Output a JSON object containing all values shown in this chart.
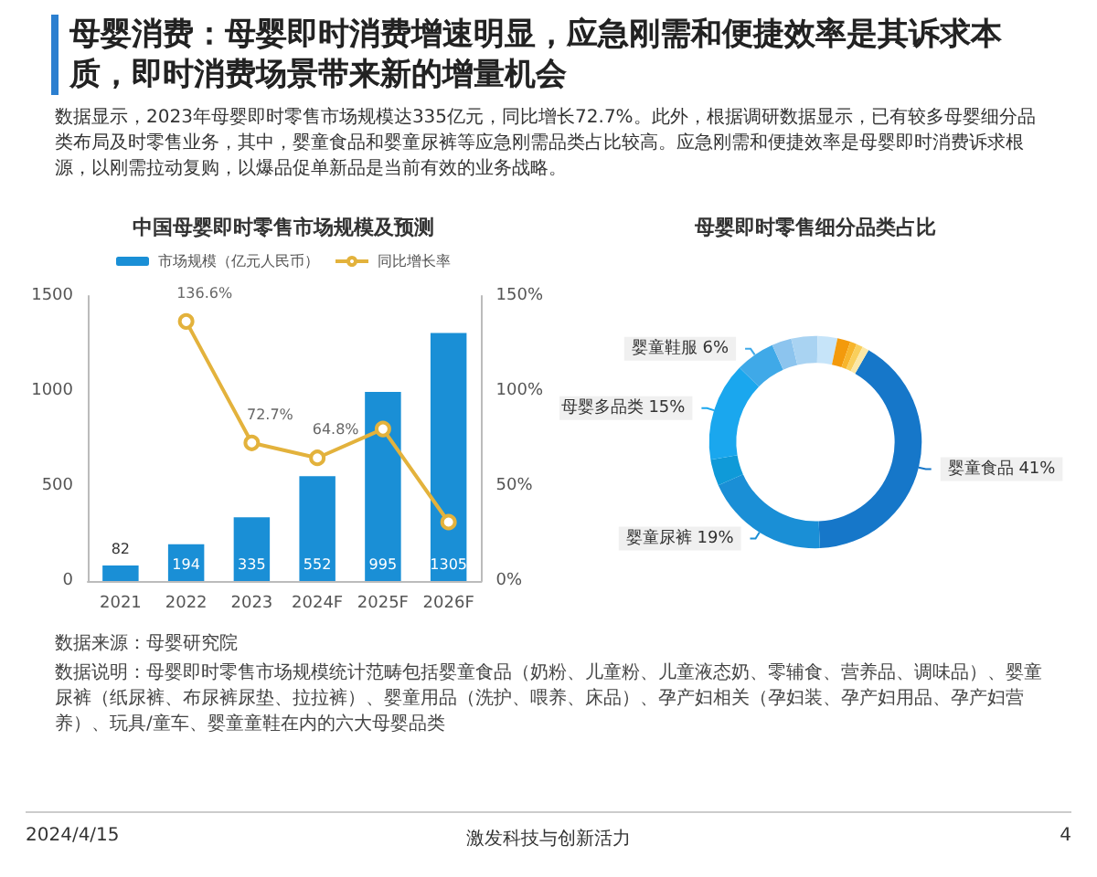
{
  "chart_data": [
    {
      "type": "other",
      "title": "母婴消费：母婴即时消费增速明显，应急刚需和便捷效率是其诉求本质，即时消费场景带来新的增量机会",
      "annotations": [
        "数据显示，2023年母婴即时零售市场规模达335亿元，同比增长72.7%。此外，根据调研数据显示，已有较多母婴细分品类布局及时零售业务，其中，婴童食品和婴童尿裤等应急刚需品类占比较高。应急刚需和便捷效率是母婴即时消费诉求根源，以刚需拉动复购，以爆品促单新品是当前有效的业务战略。",
        "数据来源：母婴研究院",
        "数据说明：母婴即时零售市场规模统计范畴包括婴童食品（奶粉、儿童粉、儿童液态奶、零辅食、营养品、调味品）、婴童尿裤（纸尿裤、布尿裤尿垫、拉拉裤）、婴童用品（洗护、喂养、床品）、孕产妇相关（孕妇装、孕产妇用品、孕产妇营养）、玩具/童车、婴童童鞋在内的六大母婴品类",
        "2024/4/15",
        "激发科技与创新活力",
        "4"
      ]
    },
    {
      "type": "bar",
      "title": "中国母婴即时零售市场规模及预测",
      "categories": [
        "2021",
        "2022",
        "2023",
        "2024F",
        "2025F",
        "2026F"
      ],
      "series": [
        {
          "name": "市场规模（亿元人民币）",
          "color": "#1a8fd6",
          "values": [
            82,
            194,
            335,
            552,
            995,
            1305
          ],
          "data_labels": true
        },
        {
          "name": "同比增长率",
          "type": "line",
          "axis": "y2",
          "color": "#e3b23c",
          "values": [
            null,
            136.6,
            72.7,
            64.8,
            80,
            31
          ],
          "value_labels": [
            null,
            "136.6%",
            "72.7%",
            "64.8%",
            null,
            null
          ]
        }
      ],
      "ylim": [
        0,
        1500
      ],
      "yticks": [
        0,
        500,
        1000,
        1500
      ],
      "y2lim": [
        0,
        150
      ],
      "y2ticks": [
        {
          "value": 0,
          "label": "0%"
        },
        {
          "value": 50,
          "label": "50%"
        },
        {
          "value": 100,
          "label": "100%"
        },
        {
          "value": 150,
          "label": "150%"
        }
      ],
      "legend": "top",
      "marker": "circle",
      "grid": false
    },
    {
      "type": "donut",
      "title": "母婴即时零售细分品类占比",
      "categories": [
        "婴童食品",
        "婴童尿裤",
        null,
        "母婴多品类",
        "婴童鞋服",
        null,
        null,
        null,
        null,
        null,
        null,
        null
      ],
      "values": [
        41,
        19,
        4,
        15,
        6,
        3,
        4,
        3,
        2,
        1,
        1,
        1
      ],
      "value_labels": [
        "41%",
        "19%",
        null,
        "15%",
        "6%",
        null,
        null,
        null,
        null,
        null,
        null,
        null
      ],
      "colors": [
        "#1677c9",
        "#1a8fd6",
        "#0f9ad8",
        "#1aa7ee",
        "#3fa9e8",
        "#8cc4ee",
        "#a9d3f2",
        "#c6e4f9",
        "#f39a0c",
        "#f7b52c",
        "#f9cf5c",
        "#fbe7a6"
      ]
    }
  ]
}
